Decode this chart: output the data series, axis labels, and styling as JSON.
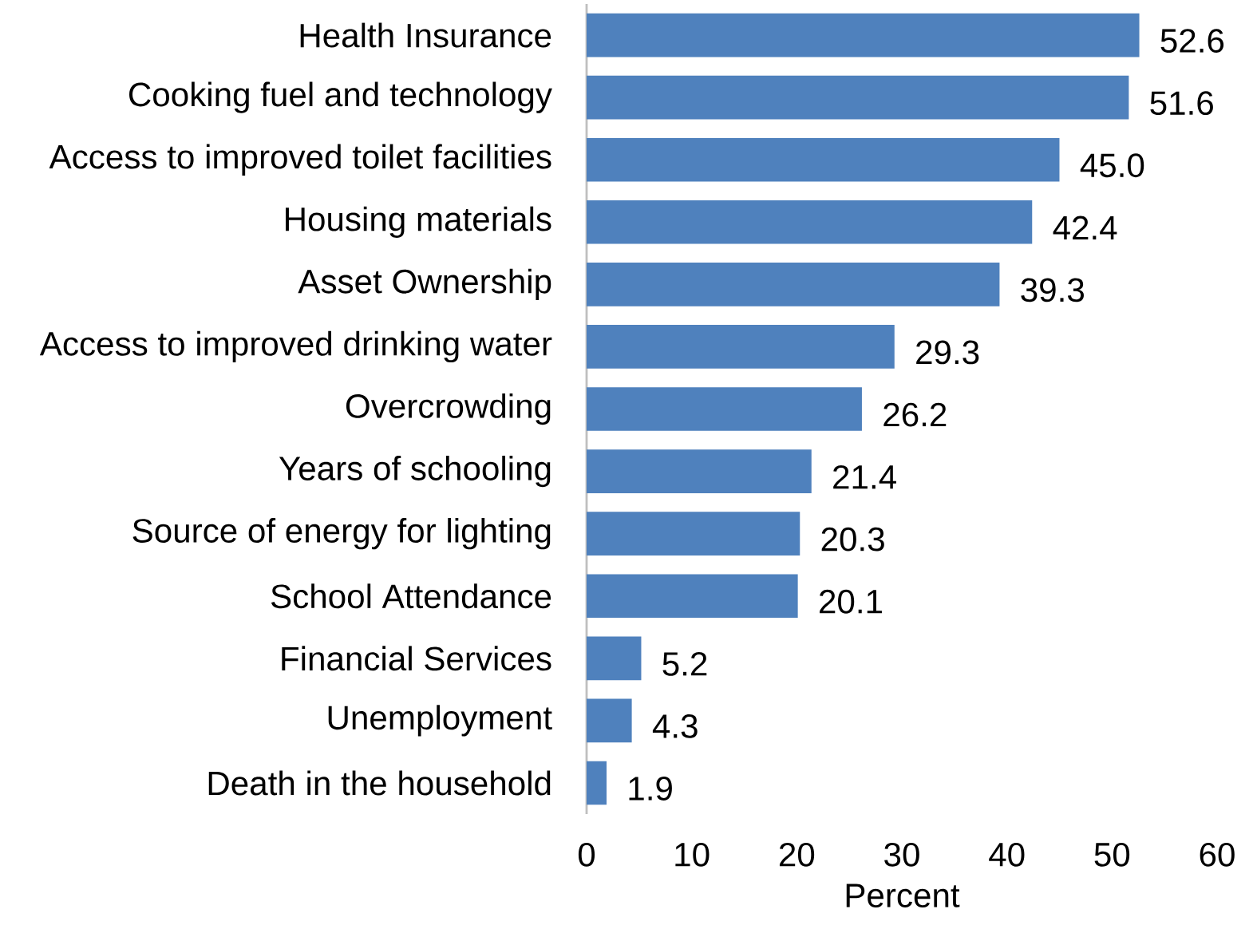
{
  "chart_data": {
    "type": "bar",
    "orientation": "horizontal",
    "xlabel": "Percent",
    "categories": [
      "Health Insurance",
      "Cooking fuel and technology",
      "Access to improved toilet facilities",
      "Housing materials",
      "Asset Ownership",
      "Access to improved drinking water",
      "Overcrowding",
      "Years of schooling",
      "Source of energy for lighting",
      "School Attendance",
      "Financial Services",
      "Unemployment",
      "Death in the household"
    ],
    "values": [
      52.6,
      51.6,
      45.0,
      42.4,
      39.3,
      29.3,
      26.2,
      21.4,
      20.3,
      20.1,
      5.2,
      4.3,
      1.9
    ],
    "value_labels": [
      "52.6",
      "51.6",
      "45.0",
      "42.4",
      "39.3",
      "29.3",
      "26.2",
      "21.4",
      "20.3",
      "20.1",
      "5.2",
      "4.3",
      "1.9"
    ],
    "color": "#4f81bd",
    "xlim": [
      0,
      60
    ],
    "xticks": [
      0,
      10,
      20,
      30,
      40,
      50,
      60
    ],
    "grid": false
  }
}
